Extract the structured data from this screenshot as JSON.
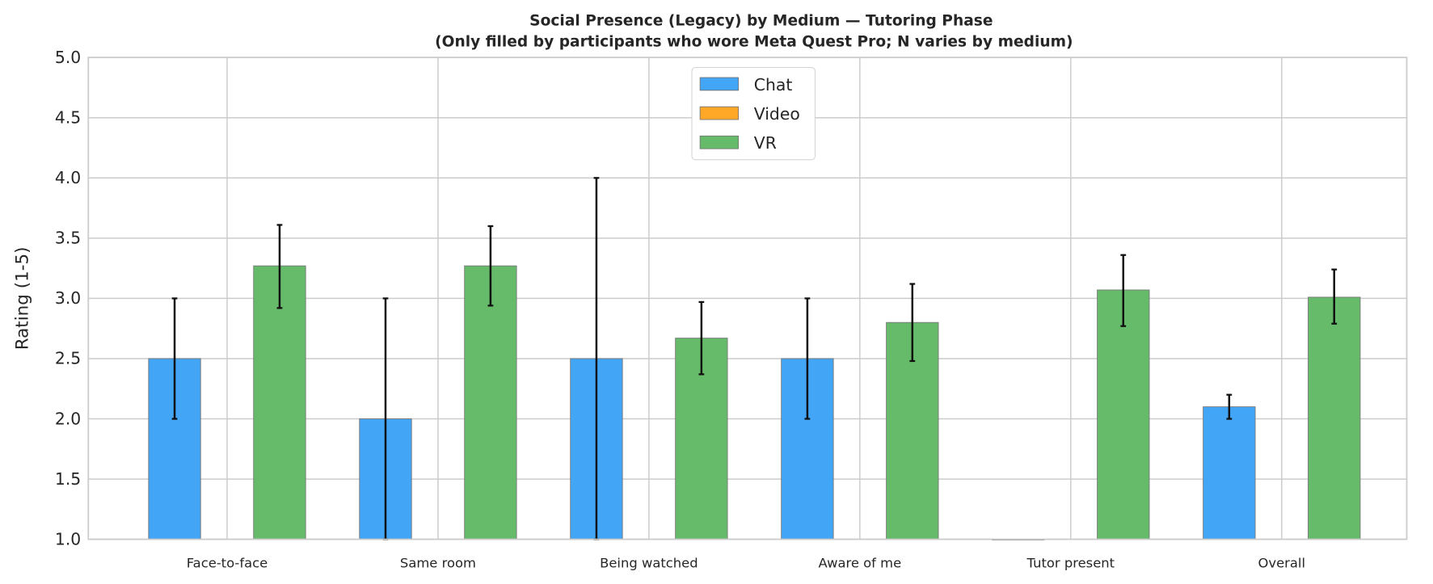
{
  "chart_data": {
    "type": "bar",
    "title": "Social Presence (Legacy) by Medium — Tutoring Phase",
    "subtitle": "(Only filled by participants who wore Meta Quest Pro; N varies by medium)",
    "xlabel": "",
    "ylabel": "Rating (1-5)",
    "ylim": [
      1.0,
      5.0
    ],
    "yticks": [
      "1.0",
      "1.5",
      "2.0",
      "2.5",
      "3.0",
      "3.5",
      "4.0",
      "4.5",
      "5.0"
    ],
    "grid": true,
    "legend_position": "top-center",
    "categories": [
      "Face-to-face",
      "Same room",
      "Being watched",
      "Aware of me",
      "Tutor present",
      "Overall"
    ],
    "series": [
      {
        "name": "Chat",
        "color": "#42a5f5",
        "values": [
          2.5,
          2.0,
          2.5,
          2.5,
          1.0,
          2.1
        ],
        "err_low": [
          2.0,
          1.0,
          1.0,
          2.0,
          null,
          2.0
        ],
        "err_high": [
          3.0,
          3.0,
          4.0,
          3.0,
          null,
          2.2
        ]
      },
      {
        "name": "Video",
        "color": "#ffa726",
        "values": [
          null,
          null,
          null,
          null,
          null,
          null
        ],
        "err_low": [
          null,
          null,
          null,
          null,
          null,
          null
        ],
        "err_high": [
          null,
          null,
          null,
          null,
          null,
          null
        ]
      },
      {
        "name": "VR",
        "color": "#66bb6a",
        "values": [
          3.27,
          3.27,
          2.67,
          2.8,
          3.07,
          3.01
        ],
        "err_low": [
          2.92,
          2.94,
          2.37,
          2.48,
          2.77,
          2.79
        ],
        "err_high": [
          3.61,
          3.6,
          2.97,
          3.12,
          3.36,
          3.24
        ]
      }
    ]
  }
}
